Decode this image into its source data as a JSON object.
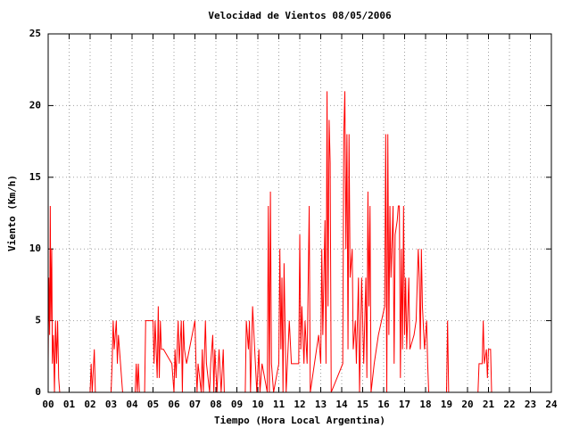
{
  "chart_data": {
    "type": "line",
    "title": "Velocidad de Vientos 08/05/2006",
    "x_label": "Tiempo (Hora Local Argentina)",
    "y_label": "Viento (Km/h)",
    "xlim": [
      0,
      24
    ],
    "ylim": [
      0,
      25
    ],
    "xticks": [
      {
        "value": 0,
        "label": "00"
      },
      {
        "value": 1,
        "label": "01"
      },
      {
        "value": 2,
        "label": "02"
      },
      {
        "value": 3,
        "label": "03"
      },
      {
        "value": 4,
        "label": "04"
      },
      {
        "value": 5,
        "label": "05"
      },
      {
        "value": 6,
        "label": "06"
      },
      {
        "value": 7,
        "label": "07"
      },
      {
        "value": 8,
        "label": "08"
      },
      {
        "value": 9,
        "label": "09"
      },
      10,
      11,
      12,
      13,
      14,
      15,
      16,
      17,
      18,
      19,
      20,
      21,
      22,
      23,
      24
    ],
    "yticks": [
      0,
      5,
      10,
      15,
      20,
      25
    ],
    "grid": true,
    "series": [
      {
        "color": "#ff0000",
        "x": [
          0.0,
          0.03,
          0.07,
          0.1,
          0.13,
          0.17,
          0.2,
          0.25,
          0.3,
          0.35,
          0.4,
          0.45,
          0.5,
          0.55,
          2.0,
          2.05,
          2.1,
          2.2,
          2.25,
          3.0,
          3.05,
          3.1,
          3.15,
          3.25,
          3.3,
          3.35,
          3.45,
          3.55,
          4.15,
          4.2,
          4.25,
          4.3,
          4.35,
          4.6,
          4.65,
          5.0,
          5.05,
          5.1,
          5.2,
          5.25,
          5.3,
          5.35,
          5.4,
          5.5,
          5.9,
          6.0,
          6.05,
          6.1,
          6.2,
          6.25,
          6.35,
          6.4,
          6.45,
          6.5,
          6.6,
          7.0,
          7.05,
          7.1,
          7.15,
          7.3,
          7.35,
          7.4,
          7.5,
          7.55,
          7.7,
          7.75,
          7.85,
          7.9,
          7.95,
          8.05,
          8.15,
          8.25,
          8.35,
          8.4,
          9.4,
          9.45,
          9.55,
          9.6,
          9.65,
          9.75,
          9.85,
          9.95,
          10.05,
          10.1,
          10.2,
          10.45,
          10.5,
          10.55,
          10.6,
          10.65,
          10.75,
          11.0,
          11.05,
          11.1,
          11.15,
          11.2,
          11.25,
          11.35,
          11.5,
          11.6,
          11.95,
          12.0,
          12.05,
          12.1,
          12.2,
          12.25,
          12.35,
          12.45,
          12.5,
          12.7,
          12.9,
          13.0,
          13.05,
          13.1,
          13.15,
          13.2,
          13.25,
          13.3,
          13.35,
          13.4,
          13.45,
          13.5,
          14.05,
          14.1,
          14.15,
          14.2,
          14.25,
          14.3,
          14.35,
          14.4,
          14.5,
          14.55,
          14.65,
          14.7,
          14.8,
          14.85,
          14.95,
          15.05,
          15.15,
          15.2,
          15.25,
          15.3,
          15.35,
          15.4,
          15.55,
          15.75,
          16.05,
          16.1,
          16.15,
          16.2,
          16.25,
          16.3,
          16.35,
          16.45,
          16.5,
          16.55,
          16.65,
          16.7,
          16.75,
          16.8,
          16.85,
          16.9,
          16.95,
          17.0,
          17.05,
          17.1,
          17.2,
          17.25,
          17.45,
          17.55,
          17.65,
          17.7,
          17.75,
          17.8,
          17.85,
          17.95,
          18.05,
          18.1,
          18.15,
          19.0,
          19.05,
          19.1,
          20.5,
          20.55,
          20.7,
          20.75,
          20.8,
          20.9,
          20.95,
          21.0,
          21.1,
          21.15
        ],
        "values": [
          2,
          8,
          4,
          13,
          5,
          10,
          2,
          4,
          0,
          5,
          2,
          5,
          1,
          0,
          0,
          2,
          0,
          3,
          0,
          0,
          2,
          5,
          3,
          5,
          2,
          4,
          2,
          0,
          0,
          2,
          0,
          2,
          0,
          0,
          5,
          5,
          2,
          5,
          1,
          6,
          1,
          5,
          3,
          3,
          2,
          0,
          3,
          1,
          5,
          2,
          5,
          0,
          5,
          3,
          2,
          5,
          2,
          0,
          2,
          0,
          3,
          0,
          5,
          2,
          0,
          2,
          4,
          0,
          3,
          0,
          3,
          0,
          3,
          0,
          0,
          5,
          3,
          5,
          0,
          6,
          3,
          0,
          3,
          0,
          2,
          0,
          13,
          0,
          14,
          2,
          0,
          2,
          10,
          3,
          8,
          0,
          9,
          0,
          5,
          2,
          2,
          11,
          3,
          6,
          2,
          5,
          2,
          13,
          0,
          2,
          4,
          2,
          10,
          4,
          8,
          12,
          2,
          21,
          6,
          19,
          16,
          0,
          2,
          18,
          21,
          10,
          18,
          3,
          18,
          8,
          10,
          3,
          5,
          2,
          8,
          0,
          8,
          2,
          8,
          1,
          14,
          6,
          13,
          0,
          2,
          4,
          6,
          18,
          0,
          18,
          4,
          13,
          8,
          13,
          2,
          11,
          12,
          13,
          13,
          1,
          10,
          3,
          13,
          4,
          8,
          3,
          8,
          3,
          4,
          5,
          10,
          8,
          3,
          10,
          6,
          3,
          5,
          2,
          0,
          0,
          5,
          0,
          0,
          2,
          2,
          5,
          2,
          3,
          1,
          3,
          3,
          0
        ]
      }
    ]
  }
}
